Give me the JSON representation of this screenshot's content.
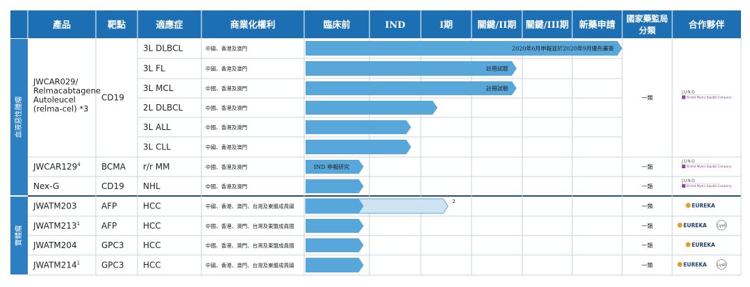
{
  "colors": {
    "header_bg": "#1c6fb3",
    "header_text": "#ffffff",
    "group_bar": "#2b7fc2",
    "arrow_fill": "#58a7da",
    "arrow_light": "#cfe4f3",
    "arrow_light_stroke": "#58a7da",
    "grid": "#c9d3dc",
    "divider": "#1d4f80",
    "text": "#222222"
  },
  "header": {
    "product": "產品",
    "target": "靶點",
    "indication": "適應症",
    "rights": "商業化權利",
    "stages": [
      "臨床前",
      "IND",
      "I期",
      "關鍵/II期",
      "關鍵/III期",
      "新藥申請"
    ],
    "nmpa": "國家藥監局分類",
    "partner": "合作夥伴"
  },
  "groups": [
    {
      "label": "血液惡性腫瘤"
    },
    {
      "label": "實體瘤"
    }
  ],
  "products": [
    {
      "name": "JWCAR029/ Relmacabtagene Autoleucel (relma-cel) *3",
      "target": "CD19",
      "nmpa": "一類",
      "partner": [
        "JUNO",
        "Bristol Myers Squibb Company"
      ]
    },
    {
      "name": "JWCAR129",
      "sup": "4",
      "target": "BCMA",
      "nmpa": "一類",
      "partner": [
        "JUNO",
        "Bristol Myers Squibb Company"
      ]
    },
    {
      "name": "Nex-G",
      "target": "CD19",
      "nmpa": "一類",
      "partner": [
        "JUNO",
        "Bristol Myers Squibb Company"
      ]
    },
    {
      "name": "JWATM203",
      "target": "AFP",
      "nmpa": "一類",
      "partner": [
        "EUREKA"
      ]
    },
    {
      "name": "JWATM213",
      "sup": "1",
      "target": "AFP",
      "nmpa": "一類",
      "partner": [
        "EUREKA",
        "Lyell"
      ]
    },
    {
      "name": "JWATM204",
      "target": "GPC3",
      "nmpa": "一類",
      "partner": [
        "EUREKA"
      ]
    },
    {
      "name": "JWATM214",
      "sup": "1",
      "target": "GPC3",
      "nmpa": "一類",
      "partner": [
        "EUREKA",
        "Lyell"
      ]
    }
  ],
  "rows": [
    {
      "indication": "3L DLBCL",
      "rights": "中國、香港及澳門"
    },
    {
      "indication": "3L FL",
      "rights": "中國、香港及澳門"
    },
    {
      "indication": "3L MCL",
      "rights": "中國、香港及澳門"
    },
    {
      "indication": "2L DLBCL",
      "rights": "中國、香港及澳門"
    },
    {
      "indication": "3L ALL",
      "rights": "中國、香港及澳門"
    },
    {
      "indication": "3L CLL",
      "rights": "中國、香港及澳門"
    },
    {
      "indication": "r/r MM",
      "rights": "中國、香港及澳門"
    },
    {
      "indication": "NHL",
      "rights": "中國、香港及澳門"
    },
    {
      "indication": "HCC",
      "rights": "中國、香港、澳門、台灣及東盟成員國"
    },
    {
      "indication": "HCC",
      "rights": "中國、香港、澳門、台灣及東盟成員國"
    },
    {
      "indication": "HCC",
      "rights": "中國、香港、澳門、台灣及東盟成員國"
    },
    {
      "indication": "HCC",
      "rights": "中國、香港、澳門、台灣及東盟成員國"
    }
  ],
  "chart_data": {
    "type": "bar",
    "orientation": "horizontal",
    "categories": [
      "3L DLBCL",
      "3L FL",
      "3L MCL",
      "2L DLBCL",
      "3L ALL",
      "3L CLL",
      "r/r MM",
      "NHL",
      "HCC",
      "HCC",
      "HCC",
      "HCC"
    ],
    "stage_labels": [
      "臨床前",
      "IND",
      "I期",
      "關鍵/II期",
      "關鍵/III期",
      "新藥申請"
    ],
    "series": [
      {
        "values": [
          6.0,
          4.0,
          4.0,
          2.5,
          2.0,
          2.0,
          1.1,
          1.1,
          1.1,
          1.1,
          1.1,
          1.1
        ]
      },
      {
        "values": [
          0,
          0,
          0,
          0,
          0,
          0,
          0,
          0,
          2.7,
          0,
          0,
          0
        ]
      }
    ],
    "bar_labels": [
      "2020年6月申報並於2020年9月優先審查",
      "註冊試驗",
      "註冊試驗",
      "",
      "",
      "",
      "IND 申報研究",
      "",
      "",
      "",
      "",
      ""
    ],
    "annotations": [
      {
        "row": 8,
        "text": "2"
      }
    ],
    "xlim": [
      0,
      6
    ]
  }
}
